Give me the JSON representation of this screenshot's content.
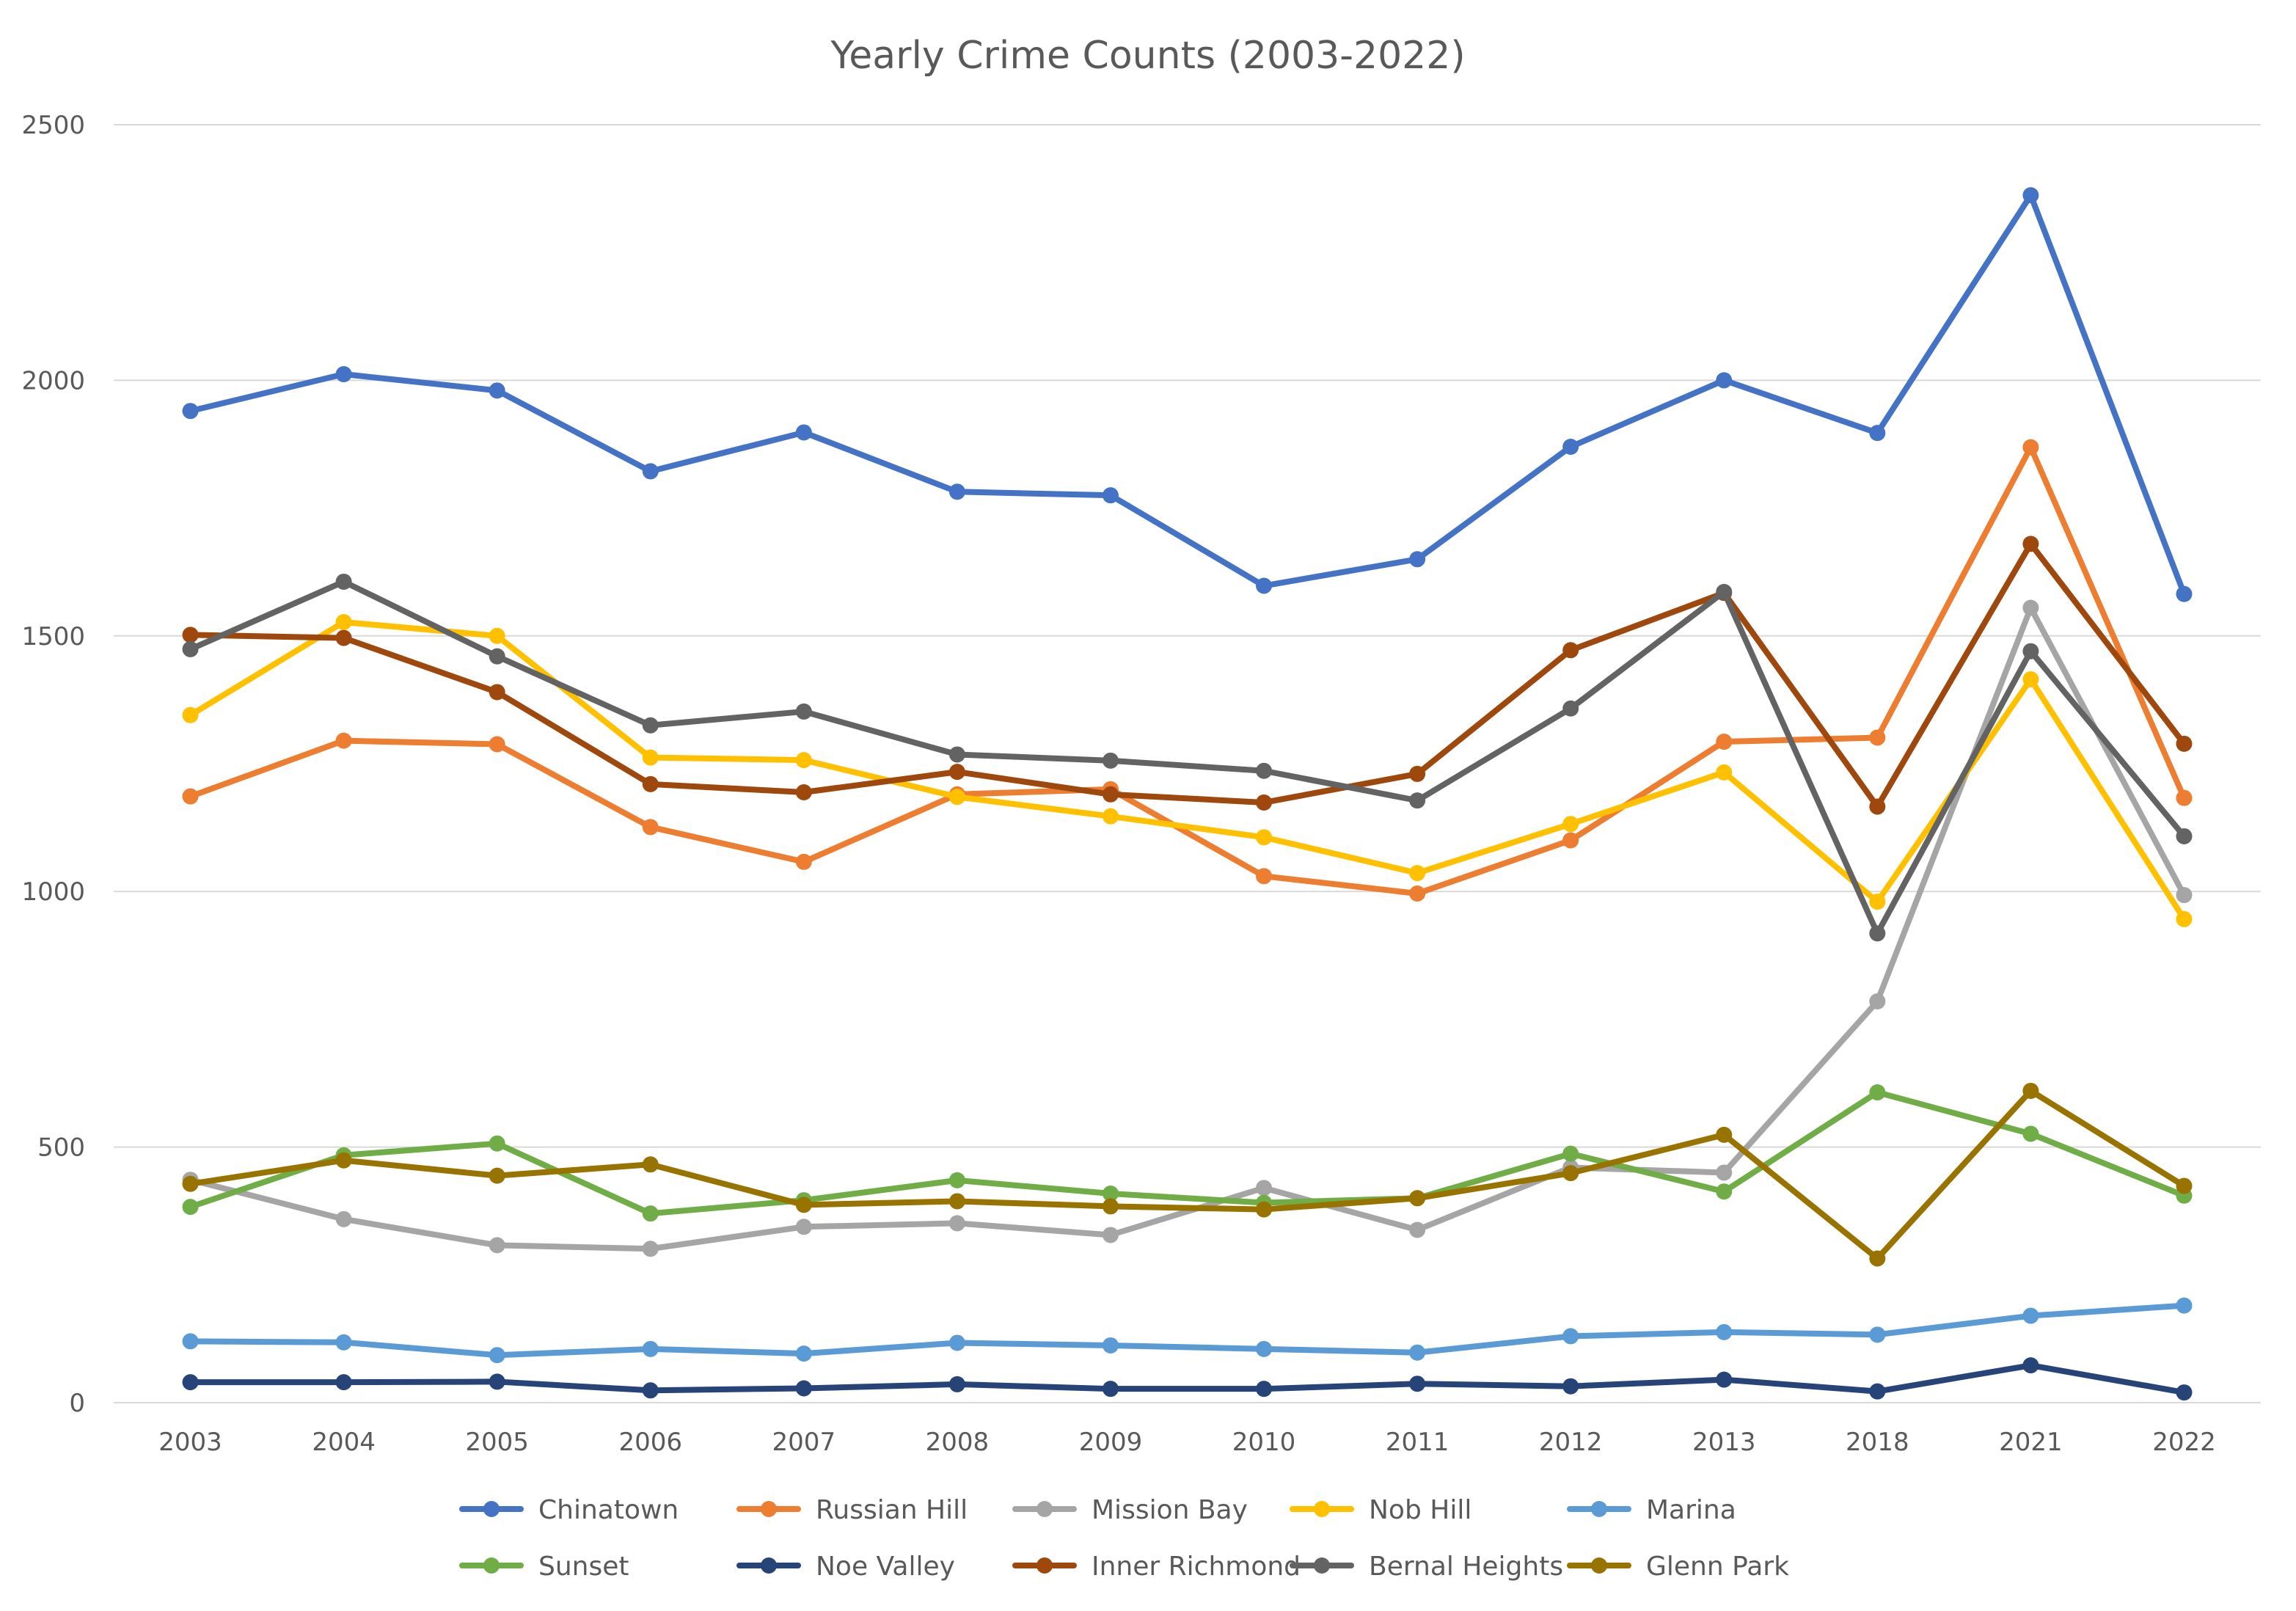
{
  "chart_data": {
    "type": "line",
    "title": "Yearly Crime Counts (2003-2022)",
    "xlabel": "",
    "ylabel": "",
    "categories": [
      "2003",
      "2004",
      "2005",
      "2006",
      "2007",
      "2008",
      "2009",
      "2010",
      "2011",
      "2012",
      "2013",
      "2018",
      "2021",
      "2022"
    ],
    "ylim": [
      0,
      2500
    ],
    "yticks": [
      0,
      500,
      1000,
      1500,
      2000,
      2500
    ],
    "grid": true,
    "legend_position": "bottom",
    "series": [
      {
        "name": "Chinatown",
        "color": "#4472C4",
        "values": [
          1940,
          2012,
          1980,
          1822,
          1898,
          1782,
          1775,
          1598,
          1650,
          1870,
          2000,
          1897,
          2362,
          1582
        ]
      },
      {
        "name": "Russian Hill",
        "color": "#ED7D31",
        "values": [
          1186,
          1295,
          1288,
          1126,
          1058,
          1190,
          1200,
          1030,
          996,
          1100,
          1293,
          1301,
          1869,
          1183
        ]
      },
      {
        "name": "Mission Bay",
        "color": "#A5A5A5",
        "values": [
          436,
          359,
          308,
          301,
          344,
          351,
          328,
          420,
          338,
          460,
          450,
          785,
          1555,
          993
        ]
      },
      {
        "name": "Nob Hill",
        "color": "#FFC000",
        "values": [
          1345,
          1527,
          1500,
          1262,
          1257,
          1185,
          1147,
          1106,
          1036,
          1132,
          1233,
          980,
          1415,
          946
        ]
      },
      {
        "name": "Marina",
        "color": "#5B9BD5",
        "values": [
          120,
          118,
          93,
          105,
          96,
          117,
          112,
          105,
          98,
          130,
          138,
          133,
          170,
          190
        ]
      },
      {
        "name": "Sunset",
        "color": "#70AD47",
        "values": [
          383,
          484,
          507,
          370,
          396,
          435,
          409,
          391,
          400,
          487,
          413,
          607,
          526,
          405
        ]
      },
      {
        "name": "Noe Valley",
        "color": "#264478",
        "values": [
          40,
          40,
          41,
          24,
          28,
          36,
          27,
          27,
          37,
          32,
          45,
          22,
          73,
          20
        ]
      },
      {
        "name": "Inner Richmond",
        "color": "#9E480E",
        "values": [
          1502,
          1496,
          1390,
          1210,
          1194,
          1234,
          1190,
          1174,
          1230,
          1472,
          1584,
          1166,
          1680,
          1289
        ]
      },
      {
        "name": "Bernal Heights",
        "color": "#636363",
        "values": [
          1474,
          1606,
          1460,
          1325,
          1352,
          1268,
          1256,
          1236,
          1178,
          1358,
          1586,
          918,
          1470,
          1108
        ]
      },
      {
        "name": "Glenn Park",
        "color": "#997300",
        "values": [
          428,
          474,
          444,
          466,
          387,
          394,
          384,
          378,
          400,
          449,
          524,
          282,
          610,
          424
        ]
      }
    ]
  }
}
